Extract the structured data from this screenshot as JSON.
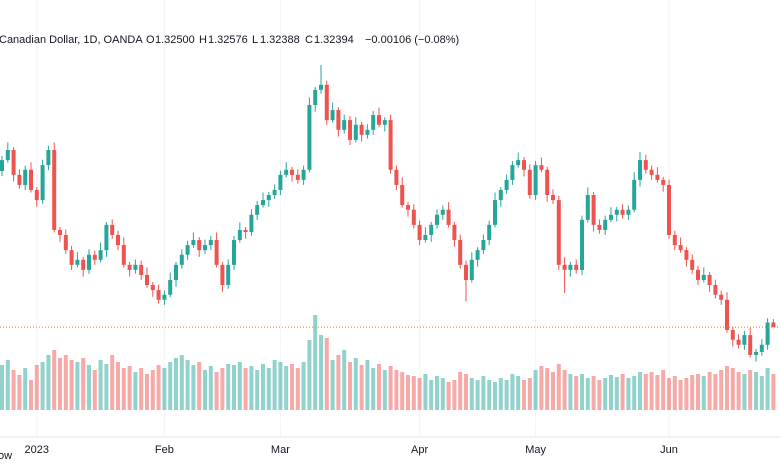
{
  "header": {
    "title": "Canadian Dollar, 1D, OANDA",
    "open_key": "O",
    "open": "1.32500",
    "high_key": "H",
    "high": "1.32576",
    "low_key": "L",
    "low": "1.32388",
    "close_key": "C",
    "close": "1.32394",
    "change": "−0.00106 (−0.08%)"
  },
  "footer": "ow",
  "chart_data": {
    "type": "candlestick",
    "up_color": "#26a69a",
    "down_color": "#ef5350",
    "price_line_color": "#f57c00",
    "ylim": [
      1.3042,
      1.3969
    ],
    "vlim": [
      0,
      100
    ],
    "categories": [
      null,
      null,
      null,
      null,
      null,
      null,
      "2023",
      null,
      null,
      null,
      null,
      null,
      null,
      null,
      null,
      null,
      null,
      null,
      null,
      null,
      null,
      null,
      null,
      null,
      null,
      null,
      null,
      null,
      "Feb",
      null,
      null,
      null,
      null,
      null,
      null,
      null,
      null,
      null,
      null,
      null,
      null,
      null,
      null,
      null,
      null,
      null,
      null,
      null,
      "Mar",
      null,
      null,
      null,
      null,
      null,
      null,
      null,
      null,
      null,
      null,
      null,
      null,
      null,
      null,
      null,
      null,
      null,
      null,
      null,
      null,
      null,
      null,
      null,
      "Apr",
      null,
      null,
      null,
      null,
      null,
      null,
      null,
      null,
      null,
      null,
      null,
      null,
      null,
      null,
      null,
      null,
      null,
      null,
      null,
      "May",
      null,
      null,
      null,
      null,
      null,
      null,
      null,
      null,
      null,
      null,
      null,
      null,
      null,
      null,
      null,
      null,
      null,
      null,
      null,
      null,
      null,
      null,
      "Jun",
      null,
      null,
      null,
      null,
      null,
      null,
      null,
      null,
      null,
      null,
      null,
      null,
      null,
      null,
      null,
      null,
      null,
      null
    ],
    "open": [
      1.361,
      1.3636,
      1.366,
      1.3601,
      1.3577,
      1.3613,
      1.3565,
      1.3541,
      1.3624,
      1.366,
      1.347,
      1.3458,
      1.3422,
      1.3387,
      1.3399,
      1.3375,
      1.3411,
      1.3399,
      1.3422,
      1.3482,
      1.3458,
      1.3434,
      1.3387,
      1.3375,
      1.3387,
      1.3363,
      1.3339,
      1.3327,
      1.3304,
      1.3316,
      1.3351,
      1.3387,
      1.3411,
      1.3434,
      1.3446,
      1.3422,
      1.3434,
      1.3446,
      1.3387,
      1.3339,
      1.3387,
      1.3446,
      1.347,
      1.3465,
      1.3506,
      1.3529,
      1.3541,
      1.3553,
      1.3565,
      1.3601,
      1.3613,
      1.3601,
      1.3589,
      1.3613,
      1.3767,
      1.3803,
      1.3815,
      1.3731,
      1.3755,
      1.3708,
      1.3731,
      1.3684,
      1.372,
      1.3696,
      1.3708,
      1.3743,
      1.372,
      1.3731,
      1.3613,
      1.3577,
      1.3529,
      1.3518,
      1.3482,
      1.3446,
      1.3458,
      1.3482,
      1.3506,
      1.3518,
      1.3482,
      1.3446,
      1.3387,
      1.3351,
      1.3399,
      1.3422,
      1.3446,
      1.3482,
      1.3541,
      1.3565,
      1.3589,
      1.3624,
      1.3636,
      1.3613,
      1.3553,
      1.3624,
      1.3613,
      1.3553,
      1.3541,
      1.3387,
      1.3375,
      1.3387,
      1.3375,
      1.3494,
      1.3553,
      1.3482,
      1.347,
      1.3494,
      1.3506,
      1.3518,
      1.3506,
      1.3518,
      1.3589,
      1.3636,
      1.3613,
      1.3601,
      1.3589,
      1.3577,
      1.3458,
      1.3434,
      1.3422,
      1.3399,
      1.3375,
      1.3351,
      1.3363,
      1.3339,
      1.3316,
      1.3304,
      1.3232,
      1.3209,
      1.3197,
      1.322,
      1.3173,
      1.318,
      1.3197,
      1.325
    ],
    "high": [
      1.3646,
      1.3678,
      1.3667,
      1.3614,
      1.3623,
      1.3631,
      1.3572,
      1.3637,
      1.367,
      1.3678,
      1.3477,
      1.3471,
      1.3432,
      1.3417,
      1.3406,
      1.3424,
      1.3421,
      1.344,
      1.3489,
      1.3495,
      1.3468,
      1.3452,
      1.3394,
      1.34,
      1.3397,
      1.3381,
      1.3346,
      1.334,
      1.3326,
      1.3369,
      1.3394,
      1.3424,
      1.3444,
      1.3464,
      1.3453,
      1.3447,
      1.3456,
      1.3464,
      1.3394,
      1.34,
      1.3456,
      1.3488,
      1.3477,
      1.3519,
      1.3539,
      1.3559,
      1.356,
      1.3578,
      1.3611,
      1.3631,
      1.362,
      1.3614,
      1.3623,
      1.3785,
      1.381,
      1.3862,
      1.3825,
      1.3773,
      1.3762,
      1.3744,
      1.3741,
      1.3738,
      1.3727,
      1.3721,
      1.3753,
      1.3761,
      1.3738,
      1.3744,
      1.3623,
      1.3595,
      1.3536,
      1.3531,
      1.3492,
      1.3476,
      1.3489,
      1.3519,
      1.3528,
      1.3536,
      1.3489,
      1.3459,
      1.3397,
      1.3417,
      1.3429,
      1.3459,
      1.3492,
      1.3559,
      1.3572,
      1.3602,
      1.3634,
      1.3654,
      1.3643,
      1.3626,
      1.3634,
      1.3642,
      1.362,
      1.3566,
      1.3551,
      1.3405,
      1.3394,
      1.34,
      1.3504,
      1.3571,
      1.356,
      1.3495,
      1.3504,
      1.3524,
      1.3525,
      1.3531,
      1.3528,
      1.3607,
      1.3655,
      1.3649,
      1.3623,
      1.3619,
      1.3596,
      1.359,
      1.3468,
      1.3452,
      1.3429,
      1.3412,
      1.3385,
      1.3381,
      1.337,
      1.3352,
      1.3326,
      1.3322,
      1.3239,
      1.3222,
      1.323,
      1.3238,
      1.3187,
      1.321,
      1.326,
      1.3258
    ],
    "low": [
      1.3598,
      1.363,
      1.3585,
      1.3568,
      1.3565,
      1.3559,
      1.3525,
      1.3532,
      1.3612,
      1.3464,
      1.3442,
      1.3413,
      1.3375,
      1.3381,
      1.3359,
      1.3366,
      1.3387,
      1.3393,
      1.3406,
      1.3449,
      1.3422,
      1.3381,
      1.3359,
      1.3366,
      1.3351,
      1.3333,
      1.3311,
      1.3295,
      1.3292,
      1.331,
      1.3335,
      1.3378,
      1.3399,
      1.3428,
      1.3406,
      1.3413,
      1.3422,
      1.3381,
      1.3323,
      1.333,
      1.3375,
      1.344,
      1.3449,
      1.3456,
      1.3494,
      1.3523,
      1.3525,
      1.3544,
      1.3553,
      1.3595,
      1.3585,
      1.358,
      1.3577,
      1.3607,
      1.3751,
      1.3794,
      1.3719,
      1.3725,
      1.3692,
      1.3699,
      1.3672,
      1.3678,
      1.368,
      1.3687,
      1.3696,
      1.3714,
      1.3704,
      1.3604,
      1.3565,
      1.3523,
      1.3502,
      1.3473,
      1.3434,
      1.344,
      1.3442,
      1.3473,
      1.3494,
      1.3476,
      1.343,
      1.3378,
      1.33,
      1.3345,
      1.3383,
      1.3413,
      1.3434,
      1.3476,
      1.3525,
      1.3556,
      1.3577,
      1.3618,
      1.3597,
      1.3544,
      1.3541,
      1.3607,
      1.3537,
      1.3532,
      1.3375,
      1.332,
      1.3359,
      1.3366,
      1.3363,
      1.3488,
      1.3466,
      1.3461,
      1.3458,
      1.3488,
      1.349,
      1.3497,
      1.3494,
      1.3512,
      1.3573,
      1.3604,
      1.3589,
      1.3583,
      1.3561,
      1.3449,
      1.3422,
      1.3416,
      1.3383,
      1.3366,
      1.3339,
      1.3345,
      1.3323,
      1.3307,
      1.3292,
      1.3226,
      1.3193,
      1.3188,
      1.3185,
      1.3167,
      1.3157,
      1.3171,
      1.3185,
      1.3239
    ],
    "close": [
      1.3636,
      1.366,
      1.3601,
      1.3577,
      1.3613,
      1.3565,
      1.3541,
      1.3624,
      1.366,
      1.347,
      1.3458,
      1.3422,
      1.3387,
      1.3399,
      1.3375,
      1.3411,
      1.3399,
      1.3422,
      1.3482,
      1.3458,
      1.3434,
      1.3387,
      1.3375,
      1.3387,
      1.3363,
      1.3339,
      1.3327,
      1.3304,
      1.3316,
      1.3351,
      1.3387,
      1.3411,
      1.3434,
      1.3446,
      1.3422,
      1.3434,
      1.3446,
      1.3387,
      1.3339,
      1.3387,
      1.3446,
      1.347,
      1.3465,
      1.3506,
      1.3529,
      1.3541,
      1.3553,
      1.3565,
      1.3601,
      1.3613,
      1.3601,
      1.3589,
      1.3613,
      1.3767,
      1.3803,
      1.3815,
      1.3731,
      1.3755,
      1.3708,
      1.3731,
      1.3684,
      1.372,
      1.3696,
      1.3708,
      1.3743,
      1.372,
      1.3731,
      1.3613,
      1.3577,
      1.3529,
      1.3518,
      1.3482,
      1.3446,
      1.3458,
      1.3482,
      1.3506,
      1.3518,
      1.3482,
      1.3446,
      1.3387,
      1.3351,
      1.3399,
      1.3422,
      1.3446,
      1.3482,
      1.3541,
      1.3565,
      1.3589,
      1.3624,
      1.3636,
      1.3613,
      1.3553,
      1.3624,
      1.3613,
      1.3553,
      1.3541,
      1.3387,
      1.3375,
      1.3387,
      1.3375,
      1.3494,
      1.3553,
      1.3482,
      1.347,
      1.3494,
      1.3506,
      1.3518,
      1.3506,
      1.3518,
      1.3589,
      1.3636,
      1.3613,
      1.3601,
      1.3589,
      1.3577,
      1.3458,
      1.3434,
      1.3422,
      1.3399,
      1.3375,
      1.3351,
      1.3363,
      1.3339,
      1.3316,
      1.3304,
      1.3232,
      1.3209,
      1.3197,
      1.322,
      1.3173,
      1.318,
      1.3197,
      1.325,
      1.3239
    ],
    "volume": [
      45,
      50,
      40,
      35,
      42,
      30,
      45,
      48,
      55,
      60,
      52,
      55,
      50,
      48,
      52,
      45,
      40,
      50,
      46,
      55,
      48,
      42,
      44,
      38,
      42,
      36,
      40,
      45,
      42,
      48,
      52,
      55,
      50,
      45,
      48,
      40,
      44,
      38,
      42,
      46,
      45,
      48,
      42,
      44,
      40,
      46,
      42,
      50,
      48,
      44,
      46,
      42,
      48,
      70,
      95,
      75,
      72,
      50,
      55,
      60,
      48,
      52,
      45,
      50,
      42,
      46,
      40,
      44,
      40,
      38,
      35,
      34,
      32,
      36,
      30,
      34,
      32,
      28,
      30,
      38,
      36,
      32,
      30,
      34,
      30,
      28,
      32,
      30,
      36,
      34,
      30,
      32,
      40,
      44,
      42,
      38,
      46,
      40,
      36,
      34,
      36,
      32,
      34,
      30,
      32,
      35,
      33,
      36,
      32,
      34,
      38,
      36,
      38,
      35,
      40,
      32,
      34,
      30,
      32,
      35,
      36,
      34,
      38,
      36,
      40,
      44,
      42,
      38,
      36,
      40,
      38,
      34,
      42,
      36
    ]
  }
}
